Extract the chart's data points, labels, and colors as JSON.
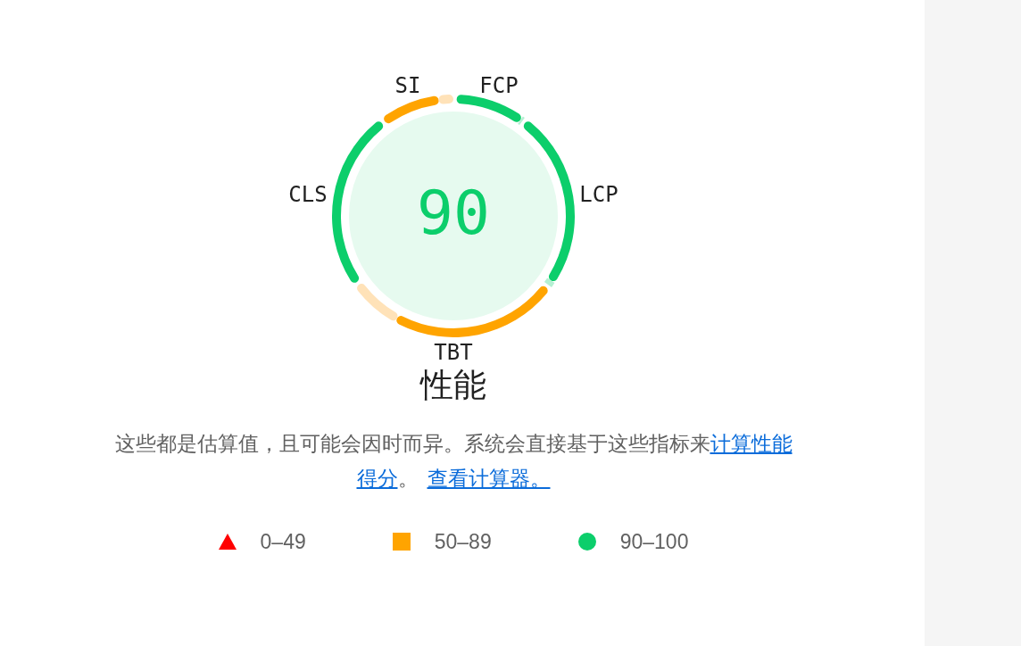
{
  "chart_data": {
    "type": "donut",
    "title": "性能",
    "categories": [
      "FCP",
      null,
      "LCP",
      null,
      "TBT",
      null,
      "CLS",
      "SI",
      null
    ],
    "values": [
      9.7,
      0.3,
      24.3,
      0.7,
      23,
      7,
      25,
      8,
      2
    ],
    "colors": [
      "#0cce6b",
      "#b5f0d2",
      "#0cce6b",
      "#b5f0d2",
      "#ffa400",
      "#ffe2b8",
      "#0cce6b",
      "#ffa400",
      "#ffe2b8"
    ],
    "annotations": [
      "90",
      "这些都是估算值，且可能会因时而异。系统会直接基于这些指标来",
      "计算性能",
      "得分",
      "。",
      "查看计算器。",
      "0–49",
      "50–89",
      "90–100"
    ]
  }
}
